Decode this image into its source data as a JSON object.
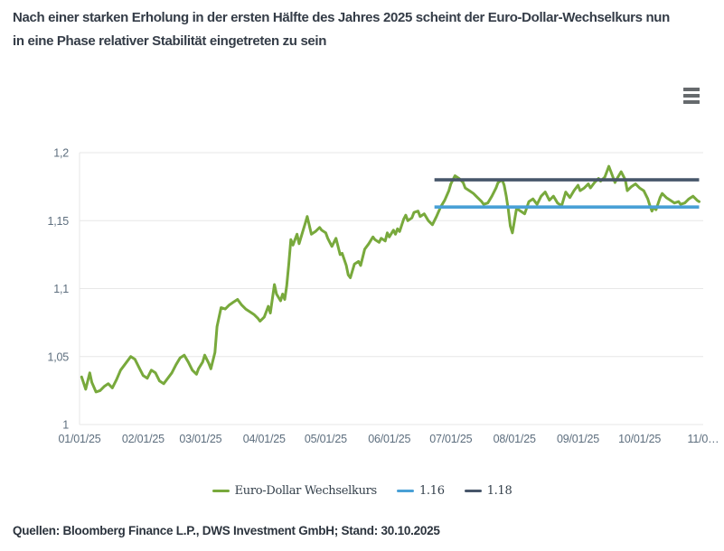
{
  "header": {
    "title_lines": [
      "Nach einer starken Erholung in der ersten Hälfte des Jahres 2025 scheint der Euro-Dollar-Wechselkurs nun",
      "in eine Phase relativer Stabilität eingetreten zu sein"
    ]
  },
  "menu": {
    "icon": "hamburger-menu-icon"
  },
  "chart_data": {
    "type": "line",
    "ylim": [
      1.0,
      1.2
    ],
    "grid": true,
    "grid_color": "#e7e7e7",
    "legend_position": "bottom",
    "yticks": [
      {
        "value": 1.0,
        "label": "1"
      },
      {
        "value": 1.05,
        "label": "1,05"
      },
      {
        "value": 1.1,
        "label": "1,1"
      },
      {
        "value": 1.15,
        "label": "1,15"
      },
      {
        "value": 1.2,
        "label": "1,2"
      }
    ],
    "x_total_days": 304,
    "x_start_date": "01/01/25",
    "xticks": [
      {
        "day": 0,
        "label": "01/01/25"
      },
      {
        "day": 31,
        "label": "02/01/25"
      },
      {
        "day": 59,
        "label": "03/01/25"
      },
      {
        "day": 90,
        "label": "04/01/25"
      },
      {
        "day": 120,
        "label": "05/01/25"
      },
      {
        "day": 151,
        "label": "06/01/25"
      },
      {
        "day": 181,
        "label": "07/01/25"
      },
      {
        "day": 212,
        "label": "08/01/25"
      },
      {
        "day": 243,
        "label": "09/01/25"
      },
      {
        "day": 273,
        "label": "10/01/25"
      },
      {
        "day": 304,
        "label": "11/0…"
      }
    ],
    "series": [
      {
        "name": "Euro-Dollar Wechselkurs",
        "color": "#78a93c",
        "points": [
          [
            1,
            1.035
          ],
          [
            3,
            1.026
          ],
          [
            5,
            1.038
          ],
          [
            6,
            1.031
          ],
          [
            8,
            1.024
          ],
          [
            10,
            1.025
          ],
          [
            12,
            1.028
          ],
          [
            14,
            1.03
          ],
          [
            16,
            1.027
          ],
          [
            18,
            1.033
          ],
          [
            20,
            1.04
          ],
          [
            22,
            1.044
          ],
          [
            25,
            1.05
          ],
          [
            27,
            1.048
          ],
          [
            29,
            1.042
          ],
          [
            31,
            1.036
          ],
          [
            33,
            1.034
          ],
          [
            35,
            1.04
          ],
          [
            37,
            1.038
          ],
          [
            39,
            1.032
          ],
          [
            41,
            1.03
          ],
          [
            43,
            1.034
          ],
          [
            45,
            1.038
          ],
          [
            47,
            1.044
          ],
          [
            49,
            1.049
          ],
          [
            51,
            1.051
          ],
          [
            53,
            1.046
          ],
          [
            55,
            1.04
          ],
          [
            57,
            1.037
          ],
          [
            58,
            1.041
          ],
          [
            60,
            1.046
          ],
          [
            61,
            1.051
          ],
          [
            63,
            1.045
          ],
          [
            64,
            1.041
          ],
          [
            66,
            1.053
          ],
          [
            67,
            1.072
          ],
          [
            69,
            1.086
          ],
          [
            71,
            1.085
          ],
          [
            73,
            1.088
          ],
          [
            75,
            1.09
          ],
          [
            77,
            1.092
          ],
          [
            79,
            1.088
          ],
          [
            81,
            1.085
          ],
          [
            83,
            1.083
          ],
          [
            85,
            1.081
          ],
          [
            87,
            1.078
          ],
          [
            88,
            1.076
          ],
          [
            90,
            1.079
          ],
          [
            92,
            1.087
          ],
          [
            93,
            1.082
          ],
          [
            95,
            1.103
          ],
          [
            96,
            1.096
          ],
          [
            98,
            1.091
          ],
          [
            99,
            1.096
          ],
          [
            100,
            1.092
          ],
          [
            101,
            1.102
          ],
          [
            102,
            1.118
          ],
          [
            103,
            1.136
          ],
          [
            104,
            1.132
          ],
          [
            106,
            1.14
          ],
          [
            107,
            1.133
          ],
          [
            109,
            1.143
          ],
          [
            110,
            1.148
          ],
          [
            111,
            1.153
          ],
          [
            113,
            1.14
          ],
          [
            115,
            1.142
          ],
          [
            117,
            1.145
          ],
          [
            118,
            1.143
          ],
          [
            120,
            1.141
          ],
          [
            121,
            1.137
          ],
          [
            122,
            1.134
          ],
          [
            123,
            1.131
          ],
          [
            125,
            1.137
          ],
          [
            127,
            1.125
          ],
          [
            128,
            1.126
          ],
          [
            130,
            1.117
          ],
          [
            131,
            1.11
          ],
          [
            132,
            1.108
          ],
          [
            134,
            1.118
          ],
          [
            136,
            1.12
          ],
          [
            137,
            1.117
          ],
          [
            139,
            1.129
          ],
          [
            141,
            1.133
          ],
          [
            143,
            1.138
          ],
          [
            144,
            1.136
          ],
          [
            146,
            1.134
          ],
          [
            147,
            1.137
          ],
          [
            149,
            1.135
          ],
          [
            150,
            1.141
          ],
          [
            151,
            1.138
          ],
          [
            153,
            1.143
          ],
          [
            154,
            1.14
          ],
          [
            155,
            1.144
          ],
          [
            156,
            1.142
          ],
          [
            158,
            1.151
          ],
          [
            159,
            1.154
          ],
          [
            160,
            1.15
          ],
          [
            162,
            1.152
          ],
          [
            163,
            1.156
          ],
          [
            165,
            1.157
          ],
          [
            166,
            1.153
          ],
          [
            168,
            1.155
          ],
          [
            170,
            1.15
          ],
          [
            172,
            1.147
          ],
          [
            174,
            1.153
          ],
          [
            176,
            1.16
          ],
          [
            178,
            1.165
          ],
          [
            180,
            1.172
          ],
          [
            181,
            1.177
          ],
          [
            183,
            1.183
          ],
          [
            185,
            1.181
          ],
          [
            187,
            1.178
          ],
          [
            188,
            1.174
          ],
          [
            190,
            1.172
          ],
          [
            192,
            1.17
          ],
          [
            194,
            1.167
          ],
          [
            196,
            1.164
          ],
          [
            197,
            1.162
          ],
          [
            199,
            1.163
          ],
          [
            201,
            1.168
          ],
          [
            203,
            1.174
          ],
          [
            204,
            1.178
          ],
          [
            206,
            1.18
          ],
          [
            207,
            1.176
          ],
          [
            208,
            1.168
          ],
          [
            209,
            1.158
          ],
          [
            210,
            1.146
          ],
          [
            211,
            1.141
          ],
          [
            212,
            1.15
          ],
          [
            213,
            1.159
          ],
          [
            215,
            1.157
          ],
          [
            217,
            1.155
          ],
          [
            219,
            1.164
          ],
          [
            221,
            1.166
          ],
          [
            223,
            1.162
          ],
          [
            225,
            1.168
          ],
          [
            227,
            1.171
          ],
          [
            229,
            1.165
          ],
          [
            231,
            1.168
          ],
          [
            233,
            1.163
          ],
          [
            235,
            1.161
          ],
          [
            237,
            1.171
          ],
          [
            239,
            1.167
          ],
          [
            241,
            1.172
          ],
          [
            243,
            1.176
          ],
          [
            244,
            1.172
          ],
          [
            246,
            1.174
          ],
          [
            248,
            1.177
          ],
          [
            249,
            1.174
          ],
          [
            251,
            1.178
          ],
          [
            253,
            1.181
          ],
          [
            254,
            1.179
          ],
          [
            256,
            1.182
          ],
          [
            258,
            1.19
          ],
          [
            259,
            1.186
          ],
          [
            261,
            1.178
          ],
          [
            262,
            1.181
          ],
          [
            264,
            1.186
          ],
          [
            266,
            1.18
          ],
          [
            267,
            1.172
          ],
          [
            269,
            1.175
          ],
          [
            271,
            1.177
          ],
          [
            273,
            1.174
          ],
          [
            275,
            1.172
          ],
          [
            277,
            1.166
          ],
          [
            278,
            1.161
          ],
          [
            279,
            1.157
          ],
          [
            280,
            1.16
          ],
          [
            281,
            1.158
          ],
          [
            283,
            1.167
          ],
          [
            284,
            1.17
          ],
          [
            286,
            1.167
          ],
          [
            288,
            1.165
          ],
          [
            290,
            1.163
          ],
          [
            292,
            1.164
          ],
          [
            293,
            1.162
          ],
          [
            295,
            1.163
          ],
          [
            297,
            1.166
          ],
          [
            299,
            1.168
          ],
          [
            301,
            1.165
          ],
          [
            302,
            1.164
          ]
        ]
      }
    ],
    "ref_lines": [
      {
        "name": "1.16",
        "value": 1.16,
        "color": "#49a0d6",
        "start_day": 173,
        "end_day": 302
      },
      {
        "name": "1.18",
        "value": 1.18,
        "color": "#47566a",
        "start_day": 173,
        "end_day": 302
      }
    ]
  },
  "legend": {
    "items": [
      {
        "label": "Euro-Dollar Wechselkurs",
        "color": "#78a93c"
      },
      {
        "label": "1.16",
        "color": "#49a0d6"
      },
      {
        "label": "1.18",
        "color": "#47566a"
      }
    ]
  },
  "footer": {
    "source": "Quellen: Bloomberg Finance L.P., DWS Investment GmbH; Stand: 30.10.2025"
  }
}
